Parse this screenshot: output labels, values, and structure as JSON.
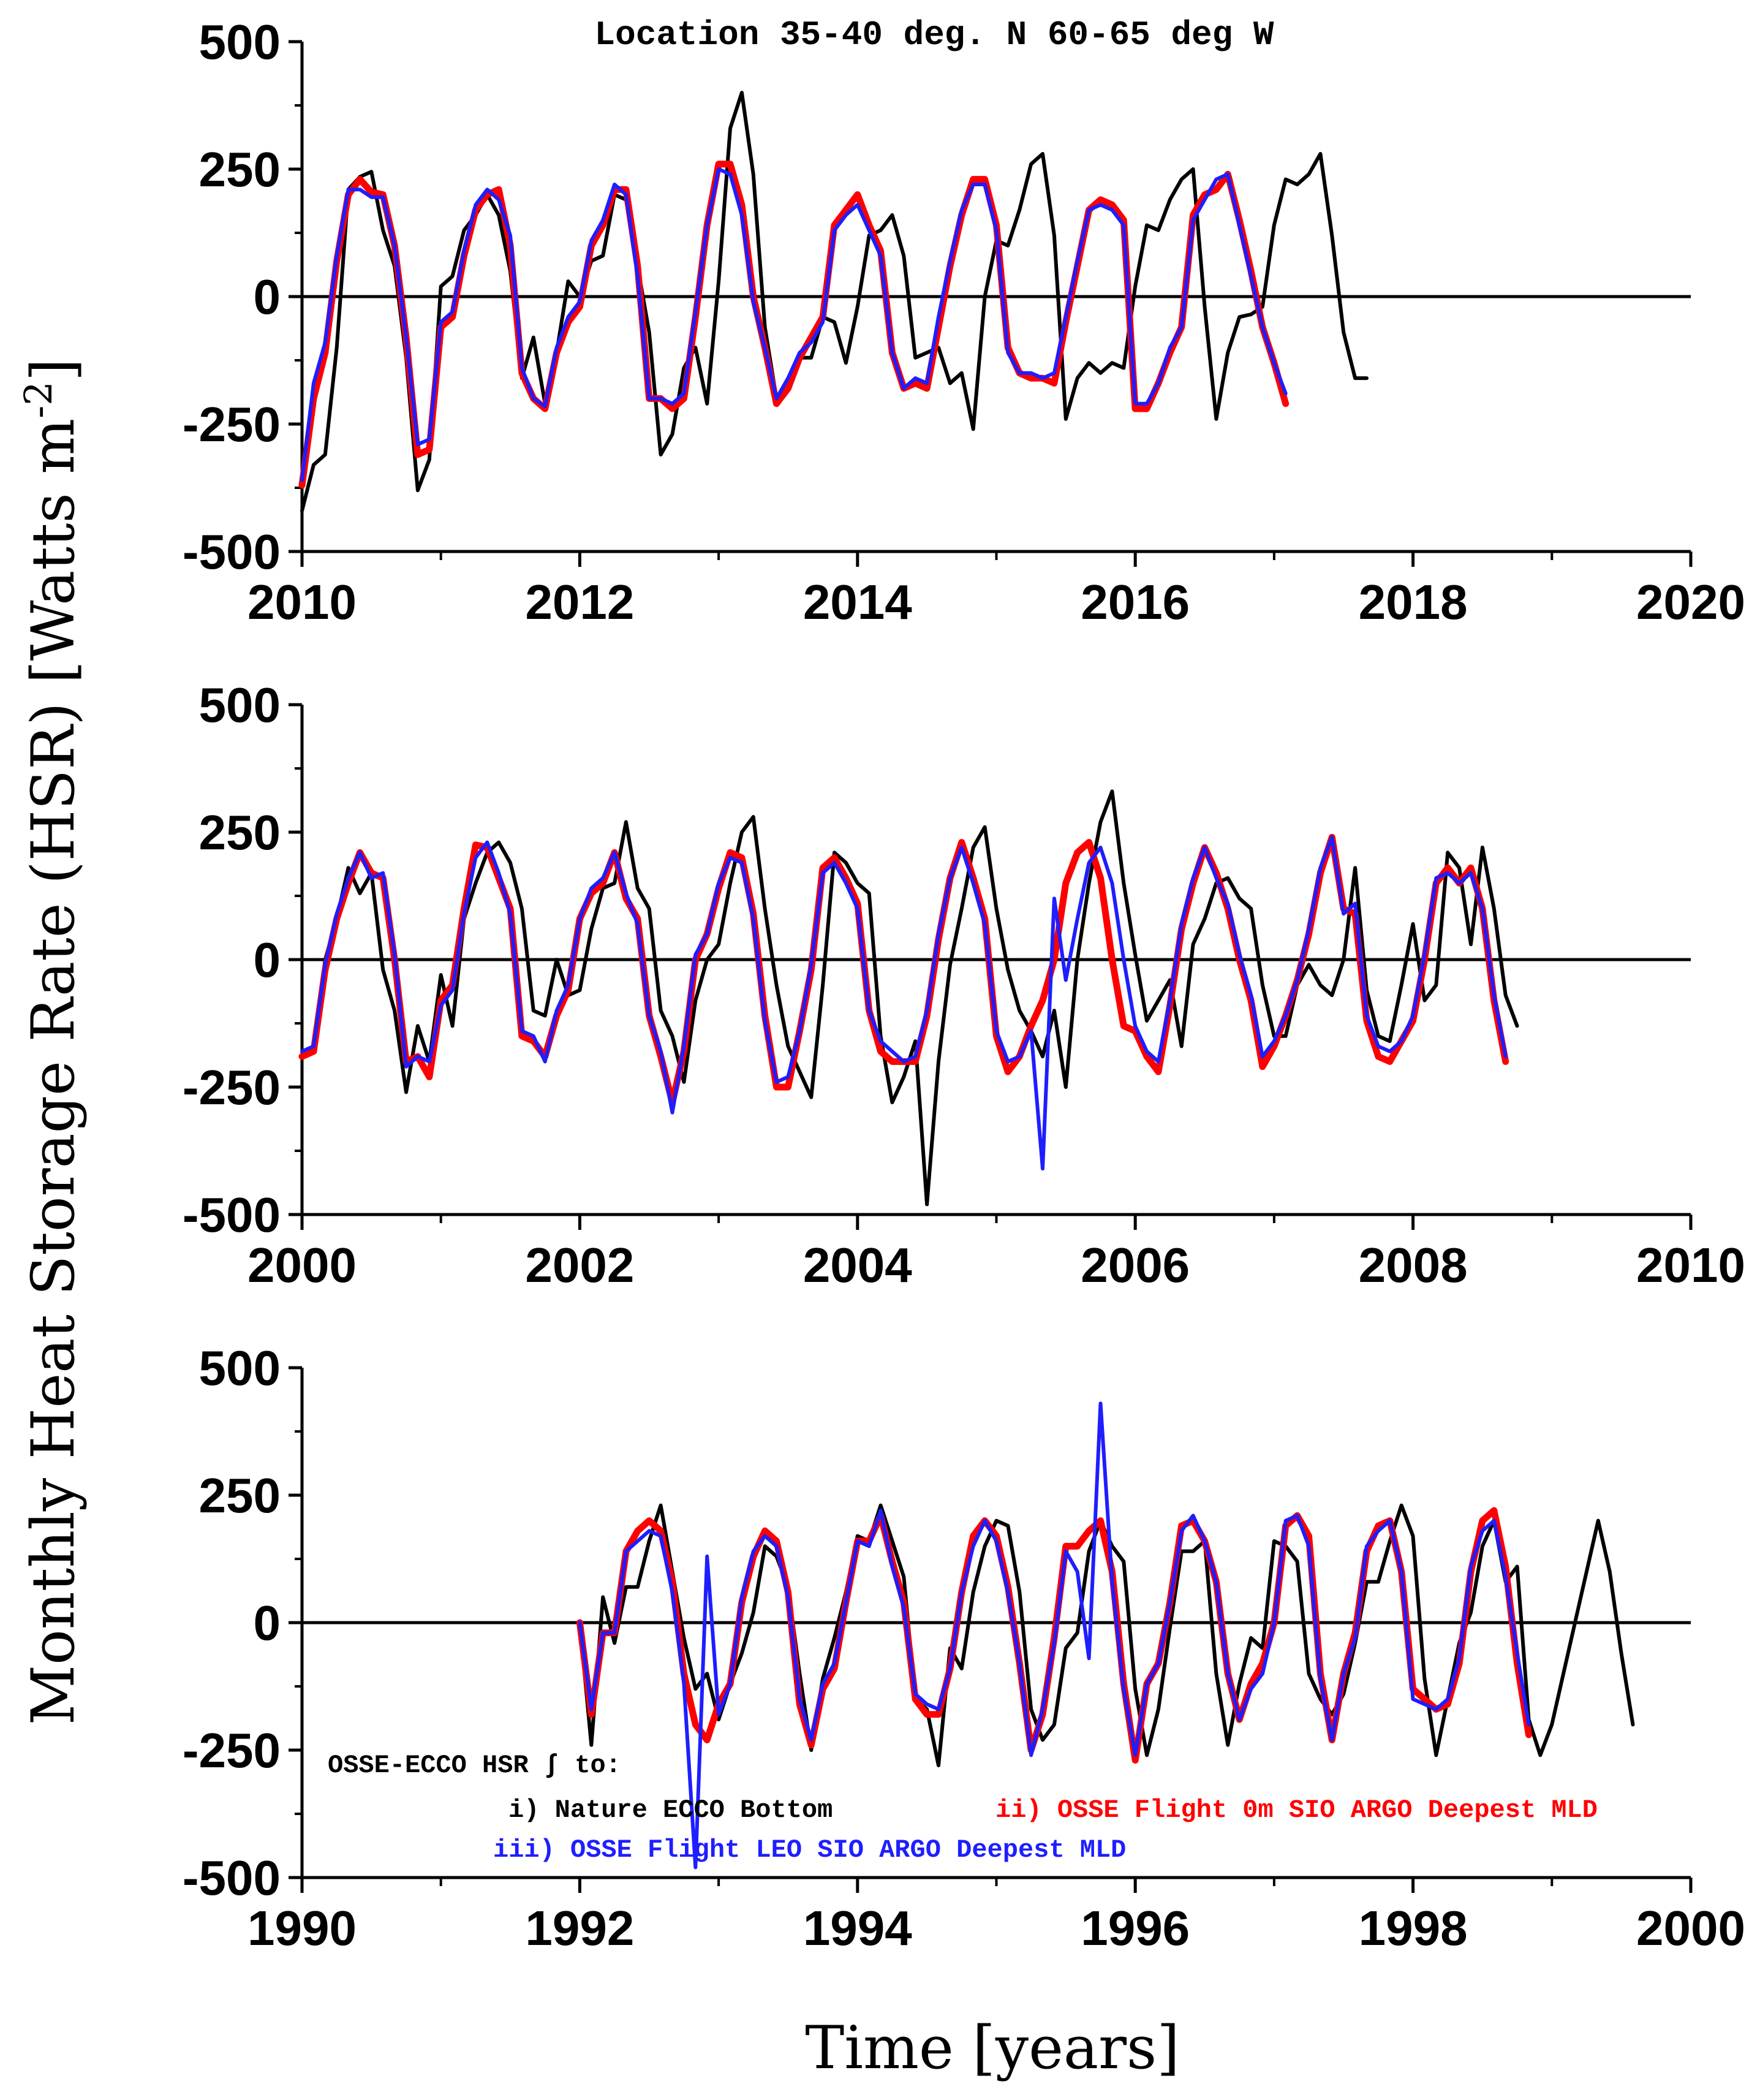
{
  "colors": {
    "nature": "#000000",
    "osse_0m": "#ff0000",
    "osse_leo": "#1e1eff",
    "axis": "#000000"
  },
  "figure": {
    "title": "Location 35-40 deg. N 60-65 deg W",
    "ylabel_text": "Monthly Heat Storage Rate (HSR) [Watts m",
    "ylabel_sup": "-2",
    "ylabel_close": "]",
    "xlabel": "Time [years]"
  },
  "legend": {
    "heading": "OSSE-ECCO HSR ∫ to:",
    "items": [
      {
        "label": "i) Nature ECCO Bottom",
        "color": "#000000"
      },
      {
        "label": "ii) OSSE Flight 0m SIO ARGO Deepest MLD",
        "color": "#ff0000"
      },
      {
        "label": "iii) OSSE Flight LEO SIO ARGO Deepest MLD",
        "color": "#1e1eff"
      }
    ]
  },
  "chart_data": [
    {
      "type": "line",
      "name": "panel-2010-2020",
      "xlim": [
        2010,
        2020
      ],
      "ylim": [
        -500,
        500
      ],
      "xticks": [
        2010,
        2012,
        2014,
        2016,
        2018,
        2020
      ],
      "yticks": [
        -500,
        -250,
        0,
        250,
        500
      ],
      "x_start": 2010.0,
      "x_step": 0.08333,
      "series": [
        {
          "name": "i) Nature ECCO Bottom",
          "values": [
            -420,
            -330,
            -310,
            -100,
            210,
            235,
            245,
            130,
            60,
            -120,
            -380,
            -320,
            20,
            40,
            130,
            160,
            200,
            160,
            50,
            -160,
            -80,
            -210,
            -110,
            30,
            0,
            70,
            80,
            200,
            190,
            60,
            -70,
            -310,
            -270,
            -140,
            -100,
            -210,
            30,
            330,
            400,
            240,
            -60,
            -200,
            -170,
            -120,
            -120,
            -40,
            -50,
            -130,
            -20,
            120,
            130,
            160,
            80,
            -120,
            -110,
            -100,
            -170,
            -150,
            -260,
            0,
            110,
            100,
            170,
            260,
            280,
            120,
            -240,
            -160,
            -130,
            -150,
            -130,
            -140,
            20,
            140,
            130,
            190,
            230,
            250,
            -20,
            -240,
            -110,
            -40,
            -35,
            -20,
            140,
            230,
            220,
            240,
            280,
            120,
            -70,
            -160,
            -160
          ],
          "color": "#000000",
          "width": 6
        },
        {
          "name": "ii) OSSE Flight 0m SIO ARGO Deepest MLD",
          "values": [
            -370,
            -200,
            -110,
            70,
            200,
            230,
            205,
            200,
            100,
            -80,
            -310,
            -300,
            -60,
            -40,
            80,
            170,
            200,
            210,
            100,
            -150,
            -200,
            -220,
            -110,
            -50,
            -20,
            100,
            140,
            210,
            210,
            60,
            -200,
            -200,
            -220,
            -200,
            -40,
            140,
            260,
            260,
            180,
            0,
            -100,
            -210,
            -180,
            -120,
            -80,
            -40,
            140,
            170,
            200,
            140,
            90,
            -110,
            -180,
            -170,
            -180,
            -60,
            60,
            160,
            230,
            230,
            140,
            -100,
            -150,
            -160,
            -160,
            -170,
            -50,
            60,
            170,
            190,
            180,
            150,
            -220,
            -220,
            -170,
            -110,
            -60,
            160,
            200,
            210,
            240,
            150,
            50,
            -60,
            -130,
            -210
          ],
          "color": "#ff0000",
          "width": 11
        },
        {
          "name": "iii) OSSE Flight LEO SIO ARGO Deepest MLD",
          "values": [
            -360,
            -170,
            -90,
            80,
            210,
            210,
            195,
            195,
            100,
            -80,
            -290,
            -280,
            -50,
            -30,
            90,
            180,
            210,
            190,
            120,
            -140,
            -200,
            -215,
            -100,
            -40,
            -10,
            110,
            150,
            220,
            200,
            40,
            -200,
            -200,
            -210,
            -190,
            -30,
            140,
            250,
            240,
            160,
            -10,
            -100,
            -200,
            -160,
            -110,
            -90,
            -50,
            130,
            160,
            180,
            130,
            80,
            -110,
            -180,
            -160,
            -170,
            -40,
            70,
            170,
            220,
            220,
            130,
            -110,
            -150,
            -150,
            -160,
            -150,
            -40,
            70,
            170,
            180,
            170,
            140,
            -210,
            -210,
            -170,
            -100,
            -60,
            150,
            190,
            230,
            240,
            140,
            40,
            -60,
            -130,
            -190
          ],
          "color": "#1e1eff",
          "width": 6
        }
      ]
    },
    {
      "type": "line",
      "name": "panel-2000-2010",
      "xlim": [
        2000,
        2010
      ],
      "ylim": [
        -500,
        500
      ],
      "xticks": [
        2000,
        2002,
        2004,
        2006,
        2008,
        2010
      ],
      "yticks": [
        -500,
        -250,
        0,
        250,
        500
      ],
      "x_start": 2000.0,
      "x_step": 0.08333,
      "series": [
        {
          "name": "i) Nature ECCO Bottom",
          "values": [
            -190,
            -180,
            0,
            80,
            180,
            130,
            170,
            -20,
            -100,
            -260,
            -130,
            -200,
            -30,
            -130,
            80,
            150,
            210,
            230,
            190,
            100,
            -100,
            -110,
            0,
            -70,
            -60,
            60,
            140,
            150,
            270,
            140,
            100,
            -100,
            -150,
            -240,
            -80,
            0,
            30,
            150,
            250,
            280,
            100,
            -50,
            -170,
            -220,
            -270,
            -50,
            210,
            190,
            150,
            130,
            -150,
            -280,
            -230,
            -160,
            -480,
            -200,
            -10,
            100,
            220,
            260,
            100,
            -20,
            -100,
            -140,
            -190,
            -100,
            -250,
            0,
            150,
            270,
            330,
            150,
            10,
            -120,
            -80,
            -40,
            -170,
            30,
            80,
            150,
            160,
            120,
            100,
            -50,
            -150,
            -150,
            -50,
            -10,
            -50,
            -70,
            0,
            180,
            -60,
            -150,
            -160,
            -50,
            70,
            -80,
            -50,
            210,
            180,
            30,
            220,
            100,
            -70,
            -130
          ],
          "color": "#000000",
          "width": 6
        },
        {
          "name": "ii) OSSE Flight 0m SIO ARGO Deepest MLD",
          "values": [
            -190,
            -180,
            -20,
            80,
            150,
            210,
            170,
            160,
            0,
            -200,
            -190,
            -230,
            -80,
            -50,
            100,
            225,
            220,
            160,
            100,
            -150,
            -160,
            -190,
            -110,
            -60,
            80,
            130,
            150,
            210,
            120,
            80,
            -110,
            -190,
            -280,
            -180,
            0,
            50,
            140,
            210,
            200,
            90,
            -110,
            -250,
            -250,
            -140,
            -20,
            180,
            200,
            160,
            110,
            -100,
            -180,
            -200,
            -200,
            -200,
            -110,
            40,
            160,
            230,
            160,
            80,
            -150,
            -220,
            -190,
            -130,
            -80,
            0,
            150,
            210,
            230,
            160,
            0,
            -130,
            -140,
            -190,
            -220,
            -90,
            60,
            150,
            220,
            170,
            100,
            0,
            -80,
            -210,
            -170,
            -110,
            -40,
            50,
            170,
            240,
            100,
            90,
            -120,
            -190,
            -200,
            -160,
            -120,
            0,
            150,
            180,
            150,
            180,
            100,
            -80,
            -200
          ],
          "color": "#ff0000",
          "width": 11
        },
        {
          "name": "iii) OSSE Flight LEO SIO ARGO Deepest MLD",
          "values": [
            -180,
            -170,
            -10,
            90,
            160,
            210,
            160,
            170,
            10,
            -210,
            -190,
            -200,
            -90,
            -60,
            90,
            200,
            230,
            170,
            90,
            -140,
            -150,
            -200,
            -100,
            -50,
            80,
            140,
            160,
            210,
            130,
            70,
            -110,
            -180,
            -300,
            -170,
            10,
            50,
            150,
            200,
            190,
            80,
            -120,
            -240,
            -230,
            -140,
            -10,
            170,
            190,
            150,
            100,
            -100,
            -160,
            -180,
            -200,
            -190,
            -100,
            50,
            160,
            220,
            150,
            70,
            -140,
            -200,
            -190,
            -140,
            -410,
            120,
            -40,
            80,
            190,
            220,
            150,
            0,
            -130,
            -180,
            -200,
            -80,
            70,
            160,
            220,
            160,
            110,
            10,
            -70,
            -190,
            -160,
            -110,
            -40,
            60,
            180,
            240,
            90,
            110,
            -110,
            -170,
            -180,
            -160,
            -110,
            10,
            160,
            170,
            150,
            170,
            100,
            -70,
            -190
          ],
          "color": "#1e1eff",
          "width": 6
        }
      ]
    },
    {
      "type": "line",
      "name": "panel-1990-2000",
      "xlim": [
        1990,
        2000
      ],
      "ylim": [
        -500,
        500
      ],
      "xticks": [
        1990,
        1992,
        1994,
        1996,
        1998,
        2000
      ],
      "yticks": [
        -500,
        -250,
        0,
        250,
        500
      ],
      "x_start": 1992.0,
      "x_step": 0.08333,
      "series": [
        {
          "name": "i) Nature ECCO Bottom",
          "values": [
            0,
            -240,
            50,
            -40,
            70,
            70,
            160,
            230,
            100,
            -30,
            -130,
            -100,
            -190,
            -120,
            -60,
            20,
            150,
            130,
            70,
            -100,
            -250,
            -110,
            -30,
            60,
            170,
            160,
            230,
            160,
            90,
            -150,
            -170,
            -280,
            -50,
            -90,
            60,
            150,
            200,
            190,
            60,
            -170,
            -230,
            -200,
            -50,
            -20,
            140,
            200,
            150,
            120,
            -130,
            -260,
            -170,
            -10,
            140,
            140,
            160,
            -100,
            -240,
            -120,
            -30,
            -50,
            160,
            150,
            120,
            -100,
            -150,
            -180,
            -140,
            -40,
            80,
            80,
            160,
            230,
            170,
            -110,
            -260,
            -150,
            -40,
            20,
            150,
            200,
            80,
            110,
            -190,
            -260,
            -200,
            -100,
            0,
            100,
            200,
            100,
            -60,
            -200
          ],
          "color": "#000000",
          "width": 6
        },
        {
          "name": "ii) OSSE Flight 0m SIO ARGO Deepest MLD",
          "values": [
            0,
            -180,
            -20,
            -20,
            140,
            180,
            200,
            180,
            80,
            -100,
            -200,
            -230,
            -160,
            -120,
            40,
            130,
            180,
            160,
            60,
            -160,
            -240,
            -130,
            -90,
            40,
            160,
            160,
            210,
            120,
            40,
            -150,
            -180,
            -180,
            -90,
            60,
            170,
            200,
            170,
            70,
            -80,
            -250,
            -180,
            -30,
            150,
            150,
            180,
            200,
            100,
            -120,
            -270,
            -120,
            -80,
            40,
            190,
            200,
            160,
            80,
            -100,
            -190,
            -120,
            -80,
            0,
            190,
            210,
            170,
            -100,
            -230,
            -100,
            -20,
            140,
            190,
            200,
            100,
            -130,
            -150,
            -170,
            -160,
            -80,
            100,
            200,
            220,
            110,
            -80,
            -220
          ],
          "color": "#ff0000",
          "width": 11
        },
        {
          "name": "iii) OSSE Flight LEO SIO ARGO Deepest MLD",
          "values": [
            0,
            -170,
            -20,
            -20,
            140,
            160,
            180,
            170,
            60,
            -120,
            -480,
            130,
            -180,
            -120,
            50,
            140,
            170,
            150,
            50,
            -150,
            -230,
            -120,
            -80,
            40,
            160,
            150,
            220,
            110,
            30,
            -140,
            -160,
            -170,
            -90,
            60,
            150,
            200,
            160,
            60,
            -80,
            -260,
            -170,
            -40,
            140,
            100,
            -70,
            430,
            80,
            -130,
            -260,
            -120,
            -80,
            40,
            180,
            210,
            160,
            80,
            -100,
            -190,
            -130,
            -100,
            0,
            200,
            210,
            150,
            -110,
            -230,
            -100,
            -30,
            150,
            180,
            200,
            100,
            -150,
            -160,
            -170,
            -150,
            -70,
            110,
            180,
            200,
            90,
            -60,
            -200
          ],
          "color": "#1e1eff",
          "width": 6
        }
      ]
    }
  ]
}
